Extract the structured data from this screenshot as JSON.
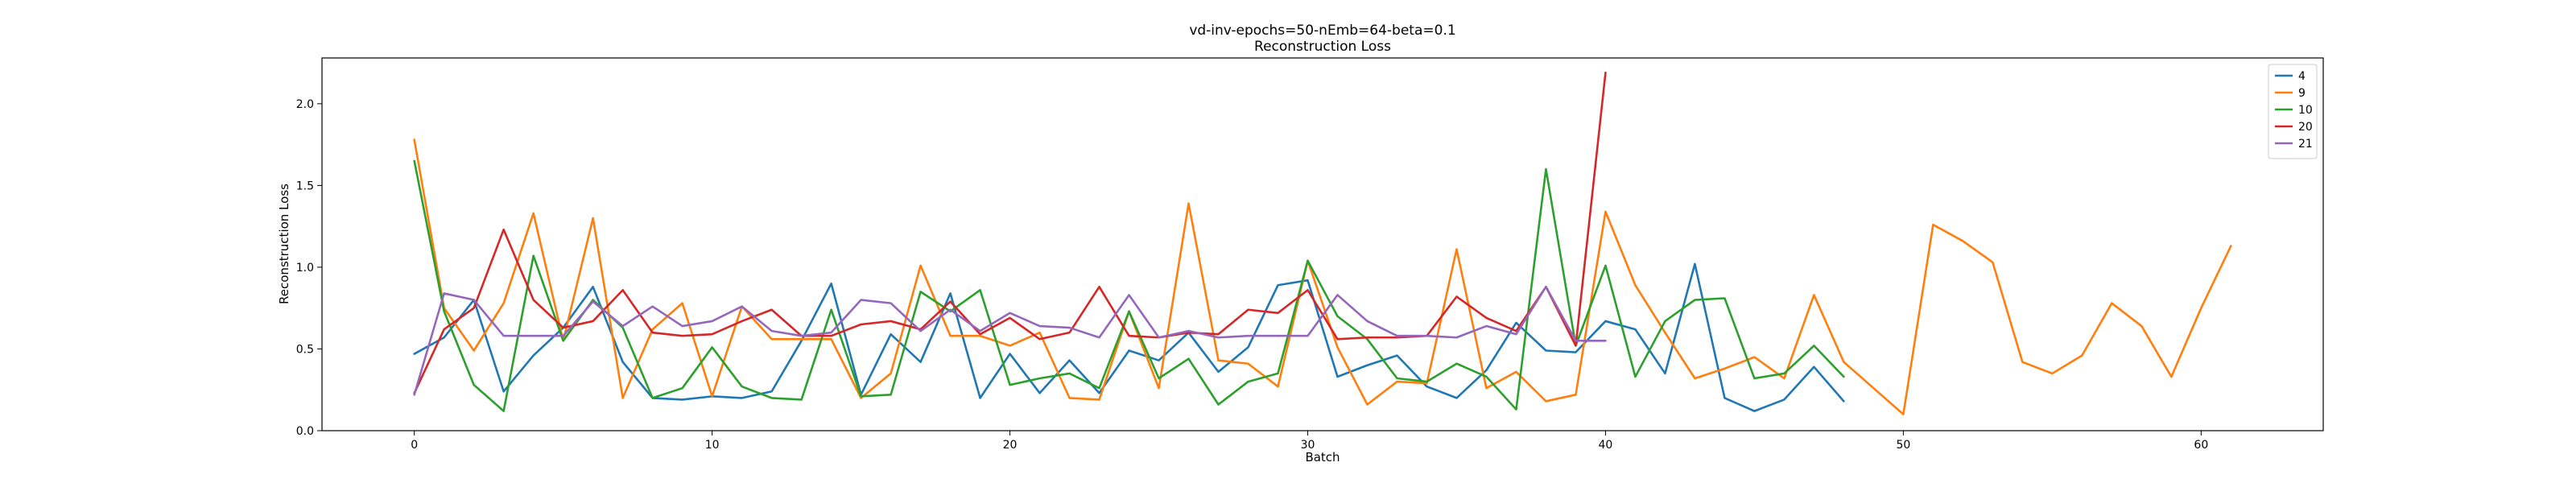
{
  "chart_data": {
    "type": "line",
    "title": "vd-inv-epochs=50-nEmb=64-beta=0.1",
    "subtitle": "Reconstruction Loss",
    "xlabel": "Batch",
    "ylabel": "Reconstruction Loss",
    "xlim": [
      -3.1,
      64.1
    ],
    "ylim": [
      0,
      2.28
    ],
    "xticks": [
      0,
      10,
      20,
      30,
      40,
      50,
      60
    ],
    "yticks": [
      0.0,
      0.5,
      1.0,
      1.5,
      2.0
    ],
    "ytick_labels": [
      "0.0",
      "0.5",
      "1.0",
      "1.5",
      "2.0"
    ],
    "legend_position": "top-right",
    "grid": false,
    "series": [
      {
        "name": "4",
        "color": "#1f77b4",
        "x": [
          0,
          1,
          2,
          3,
          4,
          5,
          6,
          7,
          8,
          9,
          10,
          11,
          12,
          13,
          14,
          15,
          16,
          17,
          18,
          19,
          20,
          21,
          22,
          23,
          24,
          25,
          26,
          27,
          28,
          29,
          30,
          31,
          32,
          33,
          34,
          35,
          36,
          37,
          38,
          39,
          40,
          41,
          42,
          43,
          44,
          45,
          46,
          47,
          48
        ],
        "values": [
          0.47,
          0.57,
          0.8,
          0.24,
          0.46,
          0.63,
          0.88,
          0.42,
          0.2,
          0.19,
          0.21,
          0.2,
          0.24,
          0.55,
          0.9,
          0.22,
          0.59,
          0.42,
          0.84,
          0.2,
          0.47,
          0.23,
          0.43,
          0.23,
          0.49,
          0.43,
          0.6,
          0.36,
          0.51,
          0.89,
          0.92,
          0.33,
          0.4,
          0.46,
          0.27,
          0.2,
          0.37,
          0.66,
          0.49,
          0.48,
          0.67,
          0.62,
          0.35,
          1.02,
          0.2,
          0.12,
          0.19,
          0.39,
          0.18
        ]
      },
      {
        "name": "9",
        "color": "#ff7f0e",
        "x": [
          0,
          1,
          2,
          3,
          4,
          5,
          6,
          7,
          8,
          9,
          10,
          11,
          12,
          13,
          14,
          15,
          16,
          17,
          18,
          19,
          20,
          21,
          22,
          23,
          24,
          25,
          26,
          27,
          28,
          29,
          30,
          31,
          32,
          33,
          34,
          35,
          36,
          37,
          38,
          39,
          40,
          41,
          42,
          43,
          44,
          45,
          46,
          47,
          48,
          49,
          50,
          51,
          52,
          53,
          54,
          55,
          56,
          57,
          58,
          59,
          60,
          61
        ],
        "values": [
          1.78,
          0.75,
          0.49,
          0.78,
          1.33,
          0.55,
          1.3,
          0.2,
          0.62,
          0.78,
          0.21,
          0.76,
          0.56,
          0.56,
          0.56,
          0.2,
          0.35,
          1.01,
          0.58,
          0.58,
          0.52,
          0.6,
          0.2,
          0.19,
          0.73,
          0.26,
          1.39,
          0.43,
          0.41,
          0.27,
          1.04,
          0.51,
          0.16,
          0.3,
          0.29,
          1.11,
          0.26,
          0.36,
          0.18,
          0.22,
          1.34,
          0.89,
          0.6,
          0.32,
          0.38,
          0.45,
          0.32,
          0.83,
          0.42,
          0.26,
          0.1,
          1.26,
          1.16,
          1.03,
          0.42,
          0.35,
          0.46,
          0.78,
          0.64,
          0.33,
          0.75,
          1.13
        ]
      },
      {
        "name": "10",
        "color": "#2ca02c",
        "x": [
          0,
          1,
          2,
          3,
          4,
          5,
          6,
          7,
          8,
          9,
          10,
          11,
          12,
          13,
          14,
          15,
          16,
          17,
          18,
          19,
          20,
          21,
          22,
          23,
          24,
          25,
          26,
          27,
          28,
          29,
          30,
          31,
          32,
          33,
          34,
          35,
          36,
          37,
          38,
          39,
          40,
          41,
          42,
          43,
          44,
          45,
          46,
          47,
          48
        ],
        "values": [
          1.65,
          0.73,
          0.28,
          0.12,
          1.07,
          0.55,
          0.8,
          0.63,
          0.2,
          0.26,
          0.51,
          0.27,
          0.2,
          0.19,
          0.74,
          0.21,
          0.22,
          0.85,
          0.73,
          0.86,
          0.28,
          0.32,
          0.35,
          0.26,
          0.73,
          0.32,
          0.44,
          0.16,
          0.3,
          0.35,
          1.04,
          0.7,
          0.56,
          0.32,
          0.3,
          0.41,
          0.33,
          0.13,
          1.6,
          0.52,
          1.01,
          0.33,
          0.67,
          0.8,
          0.81,
          0.32,
          0.35,
          0.52,
          0.33
        ]
      },
      {
        "name": "20",
        "color": "#d62728",
        "x": [
          0,
          1,
          2,
          3,
          4,
          5,
          6,
          7,
          8,
          9,
          10,
          11,
          12,
          13,
          14,
          15,
          16,
          17,
          18,
          19,
          20,
          21,
          22,
          23,
          24,
          25,
          26,
          27,
          28,
          29,
          30,
          31,
          32,
          33,
          34,
          35,
          36,
          37,
          38,
          39,
          40
        ],
        "values": [
          0.23,
          0.62,
          0.75,
          1.23,
          0.8,
          0.63,
          0.67,
          0.86,
          0.6,
          0.58,
          0.59,
          0.67,
          0.74,
          0.58,
          0.58,
          0.65,
          0.67,
          0.62,
          0.79,
          0.59,
          0.69,
          0.56,
          0.6,
          0.88,
          0.58,
          0.57,
          0.6,
          0.59,
          0.74,
          0.72,
          0.86,
          0.56,
          0.57,
          0.57,
          0.58,
          0.82,
          0.69,
          0.61,
          0.88,
          0.52,
          2.19
        ]
      },
      {
        "name": "21",
        "color": "#9467bd",
        "x": [
          0,
          1,
          2,
          3,
          4,
          5,
          6,
          7,
          8,
          9,
          10,
          11,
          12,
          13,
          14,
          15,
          16,
          17,
          18,
          19,
          20,
          21,
          22,
          23,
          24,
          25,
          26,
          27,
          28,
          29,
          30,
          31,
          32,
          33,
          34,
          35,
          36,
          37,
          38,
          39,
          40
        ],
        "values": [
          0.22,
          0.84,
          0.8,
          0.58,
          0.58,
          0.58,
          0.79,
          0.64,
          0.76,
          0.64,
          0.67,
          0.76,
          0.61,
          0.58,
          0.6,
          0.8,
          0.78,
          0.61,
          0.74,
          0.61,
          0.72,
          0.64,
          0.63,
          0.57,
          0.83,
          0.57,
          0.61,
          0.57,
          0.58,
          0.58,
          0.58,
          0.83,
          0.67,
          0.58,
          0.58,
          0.57,
          0.64,
          0.59,
          0.88,
          0.55,
          0.55
        ]
      }
    ]
  }
}
